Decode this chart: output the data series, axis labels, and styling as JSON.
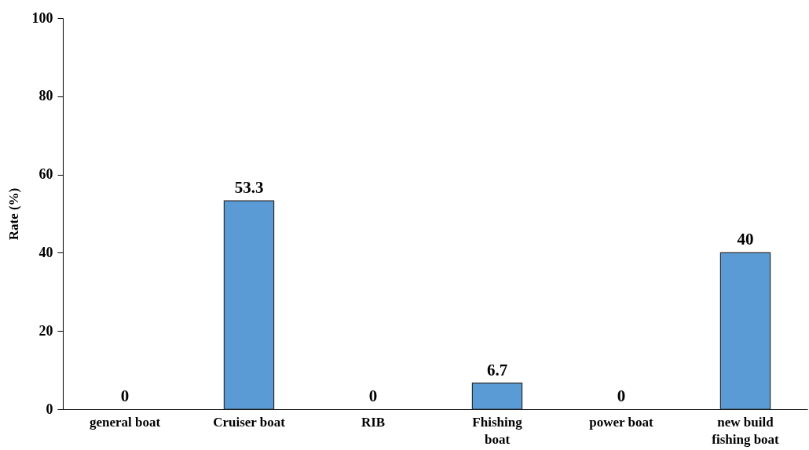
{
  "chart_data": {
    "type": "bar",
    "categories": [
      "general boat",
      "Cruiser boat",
      "RIB",
      "Fhishing\nboat",
      "power boat",
      "new build\nfishing boat"
    ],
    "values": [
      0,
      53.3,
      0,
      6.7,
      0,
      40
    ],
    "color": "#5b9bd5",
    "ylabel": "Rate (%)",
    "ylim": [
      0,
      100
    ],
    "yticks": [
      0,
      20,
      40,
      60,
      80,
      100
    ],
    "grid": false,
    "data_labels": true
  }
}
